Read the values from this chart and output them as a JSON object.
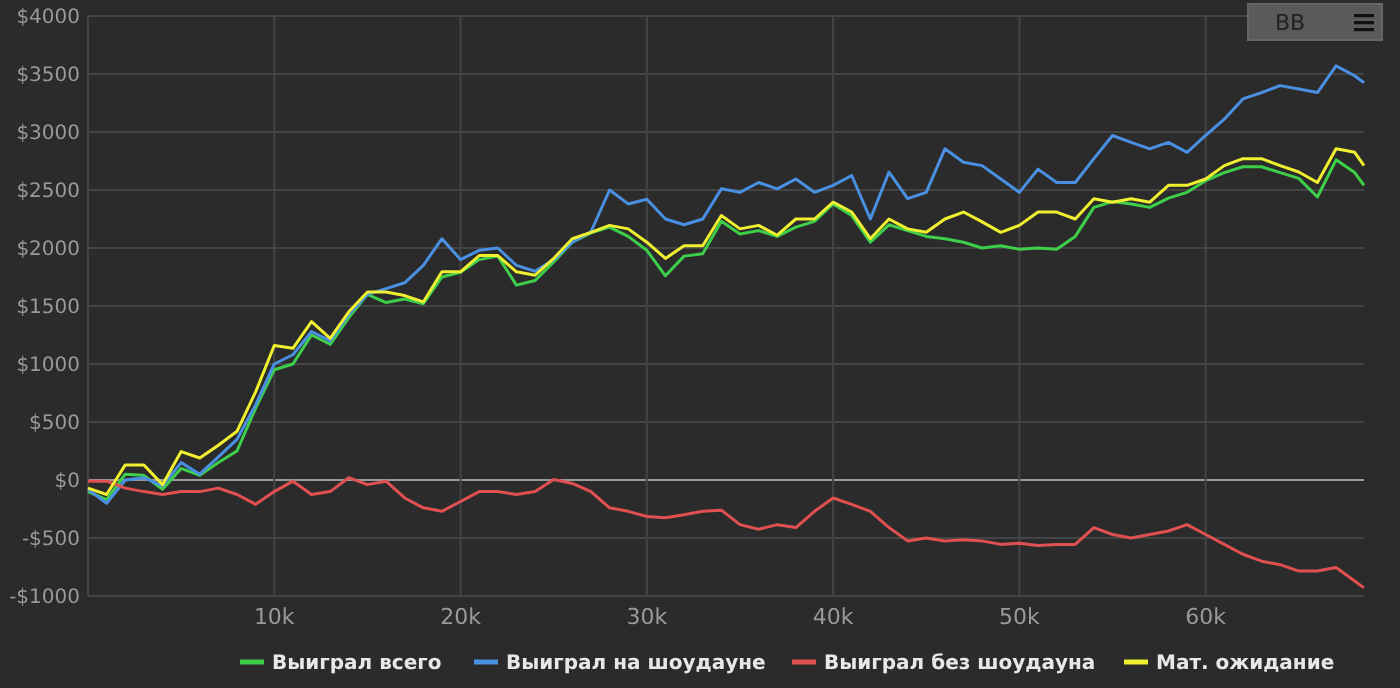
{
  "chart_data": {
    "type": "line",
    "x": [
      0,
      1000,
      2000,
      3000,
      4000,
      5000,
      6000,
      7000,
      8000,
      9000,
      10000,
      11000,
      12000,
      13000,
      14000,
      15000,
      16000,
      17000,
      18000,
      19000,
      20000,
      21000,
      22000,
      23000,
      24000,
      25000,
      26000,
      27000,
      28000,
      29000,
      30000,
      31000,
      32000,
      33000,
      34000,
      35000,
      36000,
      37000,
      38000,
      39000,
      40000,
      41000,
      42000,
      43000,
      44000,
      45000,
      46000,
      47000,
      48000,
      49000,
      50000,
      51000,
      52000,
      53000,
      54000,
      55000,
      56000,
      57000,
      58000,
      59000,
      60000,
      61000,
      62000,
      63000,
      64000,
      65000,
      66000,
      67000,
      68000,
      68500
    ],
    "series": [
      {
        "name": "Выиграл всего",
        "color": "#3ecf4a",
        "values": [
          -100,
          -170,
          50,
          40,
          -80,
          100,
          40,
          150,
          250,
          620,
          950,
          1000,
          1250,
          1170,
          1400,
          1600,
          1530,
          1560,
          1520,
          1750,
          1790,
          1900,
          1930,
          1680,
          1720,
          1880,
          2050,
          2130,
          2180,
          2100,
          1980,
          1760,
          1930,
          1950,
          2230,
          2120,
          2150,
          2100,
          2180,
          2230,
          2380,
          2280,
          2050,
          2200,
          2150,
          2100,
          2080,
          2050,
          2000,
          2020,
          1990,
          2000,
          1990,
          2100,
          2350,
          2400,
          2380,
          2350,
          2430,
          2480,
          2580,
          2650,
          2700,
          2700,
          2650,
          2600,
          2440,
          2760,
          2650,
          2540
        ]
      },
      {
        "name": "Выиграл на шоудауне",
        "color": "#4a90e2",
        "values": [
          -80,
          -200,
          0,
          20,
          -50,
          150,
          50,
          200,
          350,
          650,
          1000,
          1080,
          1280,
          1200,
          1430,
          1600,
          1650,
          1700,
          1850,
          2080,
          1900,
          1980,
          2000,
          1850,
          1800,
          1900,
          2050,
          2140,
          2500,
          2380,
          2420,
          2250,
          2200,
          2250,
          2510,
          2480,
          2565,
          2510,
          2595,
          2480,
          2540,
          2625,
          2250,
          2655,
          2425,
          2480,
          2855,
          2740,
          2710,
          2595,
          2480,
          2680,
          2565,
          2565,
          2770,
          2970,
          2910,
          2855,
          2910,
          2825,
          2970,
          3110,
          3285,
          3340,
          3400,
          3370,
          3340,
          3570,
          3485,
          3425
        ]
      },
      {
        "name": "Выиграл без шоудауна",
        "color": "#e05050",
        "values": [
          -10,
          -10,
          -70,
          -100,
          -125,
          -100,
          -100,
          -70,
          -125,
          -210,
          -100,
          -10,
          -125,
          -100,
          20,
          -40,
          -10,
          -155,
          -240,
          -270,
          -185,
          -100,
          -100,
          -125,
          -100,
          5,
          -30,
          -100,
          -240,
          -270,
          -315,
          -325,
          -300,
          -270,
          -260,
          -385,
          -425,
          -385,
          -410,
          -270,
          -155,
          -210,
          -270,
          -410,
          -525,
          -500,
          -525,
          -515,
          -525,
          -555,
          -545,
          -565,
          -555,
          -555,
          -410,
          -470,
          -500,
          -470,
          -440,
          -385,
          -470,
          -555,
          -640,
          -700,
          -730,
          -785,
          -785,
          -755,
          -870,
          -930
        ]
      },
      {
        "name": "Мат. ожидание",
        "color": "#f0f030",
        "values": [
          -70,
          -125,
          130,
          130,
          -40,
          245,
          190,
          300,
          420,
          760,
          1160,
          1135,
          1365,
          1220,
          1450,
          1620,
          1620,
          1590,
          1535,
          1795,
          1795,
          1935,
          1935,
          1795,
          1765,
          1910,
          2080,
          2135,
          2195,
          2165,
          2050,
          1910,
          2020,
          2020,
          2280,
          2165,
          2195,
          2110,
          2250,
          2250,
          2395,
          2310,
          2080,
          2250,
          2165,
          2135,
          2250,
          2310,
          2225,
          2135,
          2195,
          2310,
          2310,
          2250,
          2425,
          2395,
          2425,
          2395,
          2540,
          2540,
          2595,
          2710,
          2770,
          2770,
          2710,
          2655,
          2565,
          2855,
          2825,
          2710
        ]
      }
    ],
    "xlim": [
      0,
      68500
    ],
    "xticks": [
      {
        "value": 10000,
        "label": "10k"
      },
      {
        "value": 20000,
        "label": "20k"
      },
      {
        "value": 30000,
        "label": "30k"
      },
      {
        "value": 40000,
        "label": "40k"
      },
      {
        "value": 50000,
        "label": "50k"
      },
      {
        "value": 60000,
        "label": "60k"
      }
    ],
    "ylim": [
      -1000,
      4000
    ],
    "yticks": [
      {
        "value": -1000,
        "label": "-$1000"
      },
      {
        "value": -500,
        "label": "-$500"
      },
      {
        "value": 0,
        "label": "$0"
      },
      {
        "value": 500,
        "label": "$500"
      },
      {
        "value": 1000,
        "label": "$1000"
      },
      {
        "value": 1500,
        "label": "$1500"
      },
      {
        "value": 2000,
        "label": "$2000"
      },
      {
        "value": 2500,
        "label": "$2500"
      },
      {
        "value": 3000,
        "label": "$3000"
      },
      {
        "value": 3500,
        "label": "$3500"
      },
      {
        "value": 4000,
        "label": "$4000"
      }
    ],
    "grid": true,
    "legend": "bottom",
    "marker": "none",
    "line_style": "solid",
    "annotations": [
      "BB"
    ]
  }
}
